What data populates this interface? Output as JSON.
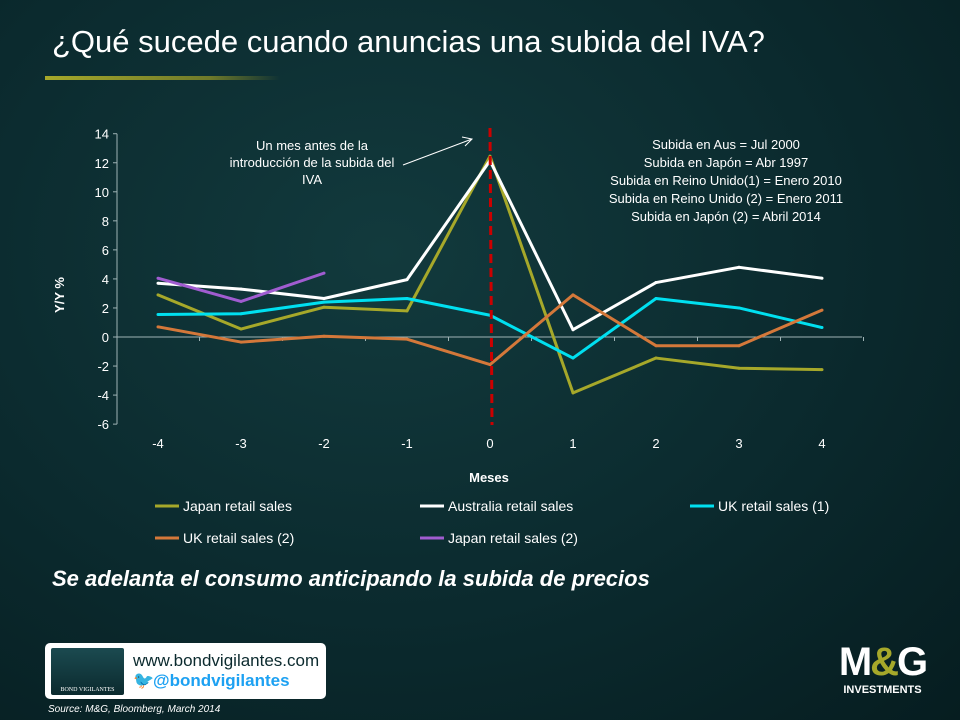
{
  "header": {
    "title": "¿Qué sucede cuando anuncias una subida del IVA?"
  },
  "subtitle": "Se adelanta el consumo anticipando la subida de precios",
  "footer": {
    "url": "www.bondvigilantes.com",
    "twitter": "@bondvigilantes",
    "logo_text": "BOND VIGILANTES",
    "source": "Source: M&G, Bloomberg, March 2014",
    "brand": "M&G",
    "brand_sub": "INVESTMENTS"
  },
  "chart_data": {
    "type": "line",
    "xlabel": "Meses",
    "ylabel": "Y/Y %",
    "x": [
      -4,
      -3,
      -2,
      -1,
      0,
      1,
      2,
      3,
      4
    ],
    "xticks": [
      "-4",
      "-3",
      "-2",
      "-1",
      "0",
      "1",
      "2",
      "3",
      "4"
    ],
    "ylim": [
      -6,
      14
    ],
    "yticks": [
      "14",
      "12",
      "10",
      "8",
      "6",
      "4",
      "2",
      "0",
      "-2",
      "-4",
      "-6"
    ],
    "grid": false,
    "legend": "bottom",
    "vline": {
      "x": 0,
      "color": "#cc0000",
      "style": "dashed"
    },
    "annotation_arrow": "Un mes antes de la introducción de la subida del IVA",
    "notes": [
      "Subida en Aus = Jul 2000",
      "Subida en Japón = Abr 1997",
      "Subida en Reino Unido(1) = Enero 2010",
      "Subida en Reino Unido (2) = Enero 2011",
      "Subida en Japón (2) = Abril 2014"
    ],
    "series": [
      {
        "name": "Japan retail sales",
        "color": "#a6a82a",
        "values": [
          2.9,
          0.55,
          2.05,
          1.8,
          12.45,
          -3.85,
          -1.45,
          -2.15,
          -2.25
        ]
      },
      {
        "name": "Australia retail sales",
        "color": "#ffffff",
        "values": [
          3.7,
          3.3,
          2.65,
          3.95,
          12.15,
          0.5,
          3.75,
          4.8,
          4.05
        ]
      },
      {
        "name": "UK retail sales (1)",
        "color": "#00e0f0",
        "values": [
          1.55,
          1.6,
          2.4,
          2.65,
          1.5,
          -1.45,
          2.65,
          2.0,
          0.65
        ]
      },
      {
        "name": "UK retail sales (2)",
        "color": "#d4783a",
        "values": [
          0.7,
          -0.35,
          0.05,
          -0.15,
          -1.9,
          2.9,
          -0.6,
          -0.6,
          1.85
        ]
      },
      {
        "name": "Japan retail sales (2)",
        "color": "#a05cd0",
        "values": [
          4.05,
          2.45,
          4.4,
          null,
          null,
          null,
          null,
          null,
          null
        ]
      }
    ]
  }
}
